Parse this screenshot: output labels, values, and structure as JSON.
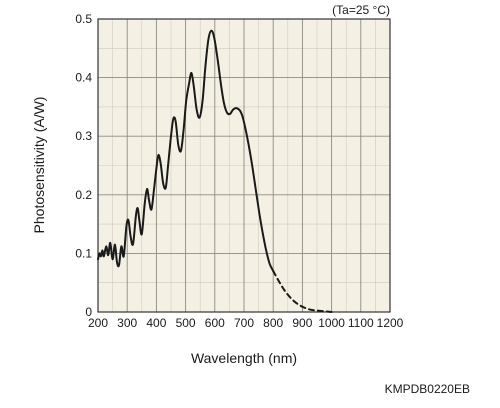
{
  "chart_data": {
    "type": "line",
    "xlabel": "Wavelength (nm)",
    "ylabel": "Photosensitivity (A/W)",
    "condition": "(Ta=25 °C)",
    "xlim": [
      200,
      1200
    ],
    "ylim": [
      0,
      0.5
    ],
    "xticks": [
      200,
      300,
      400,
      500,
      600,
      700,
      800,
      900,
      1000,
      1100,
      1200
    ],
    "yticks": [
      0,
      0.1,
      0.2,
      0.3,
      0.4,
      0.5
    ],
    "ytick_labels": [
      "0",
      "0.1",
      "0.2",
      "0.3",
      "0.4",
      "0.5"
    ],
    "x_minor_step": 50,
    "y_minor_step": 0.05,
    "grid": true,
    "plot_background": "#f4f1e4",
    "line_color": "#1a1a1a",
    "series": [
      {
        "style": "solid",
        "points": [
          [
            200,
            0.09
          ],
          [
            205,
            0.1
          ],
          [
            210,
            0.095
          ],
          [
            215,
            0.105
          ],
          [
            220,
            0.095
          ],
          [
            228,
            0.112
          ],
          [
            235,
            0.097
          ],
          [
            242,
            0.118
          ],
          [
            250,
            0.09
          ],
          [
            258,
            0.115
          ],
          [
            265,
            0.085
          ],
          [
            272,
            0.08
          ],
          [
            280,
            0.112
          ],
          [
            288,
            0.095
          ],
          [
            297,
            0.145
          ],
          [
            304,
            0.157
          ],
          [
            312,
            0.128
          ],
          [
            320,
            0.116
          ],
          [
            330,
            0.165
          ],
          [
            336,
            0.177
          ],
          [
            342,
            0.155
          ],
          [
            350,
            0.133
          ],
          [
            360,
            0.185
          ],
          [
            368,
            0.21
          ],
          [
            375,
            0.19
          ],
          [
            383,
            0.175
          ],
          [
            392,
            0.21
          ],
          [
            400,
            0.245
          ],
          [
            407,
            0.268
          ],
          [
            415,
            0.252
          ],
          [
            423,
            0.22
          ],
          [
            432,
            0.212
          ],
          [
            440,
            0.25
          ],
          [
            450,
            0.3
          ],
          [
            458,
            0.33
          ],
          [
            466,
            0.325
          ],
          [
            475,
            0.285
          ],
          [
            484,
            0.275
          ],
          [
            493,
            0.31
          ],
          [
            502,
            0.36
          ],
          [
            512,
            0.39
          ],
          [
            520,
            0.408
          ],
          [
            528,
            0.385
          ],
          [
            538,
            0.345
          ],
          [
            548,
            0.332
          ],
          [
            558,
            0.36
          ],
          [
            568,
            0.42
          ],
          [
            578,
            0.465
          ],
          [
            588,
            0.48
          ],
          [
            598,
            0.468
          ],
          [
            610,
            0.43
          ],
          [
            622,
            0.385
          ],
          [
            632,
            0.355
          ],
          [
            642,
            0.34
          ],
          [
            652,
            0.338
          ],
          [
            662,
            0.345
          ],
          [
            672,
            0.348
          ],
          [
            684,
            0.345
          ],
          [
            694,
            0.335
          ],
          [
            704,
            0.315
          ],
          [
            716,
            0.285
          ],
          [
            728,
            0.25
          ],
          [
            740,
            0.21
          ],
          [
            752,
            0.17
          ],
          [
            764,
            0.135
          ],
          [
            776,
            0.105
          ],
          [
            788,
            0.082
          ],
          [
            800,
            0.07
          ]
        ]
      },
      {
        "style": "dashed",
        "points": [
          [
            800,
            0.07
          ],
          [
            820,
            0.052
          ],
          [
            840,
            0.036
          ],
          [
            860,
            0.024
          ],
          [
            880,
            0.015
          ],
          [
            900,
            0.009
          ],
          [
            920,
            0.005
          ],
          [
            940,
            0.003
          ],
          [
            960,
            0.002
          ],
          [
            980,
            0.001
          ],
          [
            1000,
            0.0
          ]
        ]
      }
    ]
  },
  "figure_code": "KMPDB0220EB"
}
